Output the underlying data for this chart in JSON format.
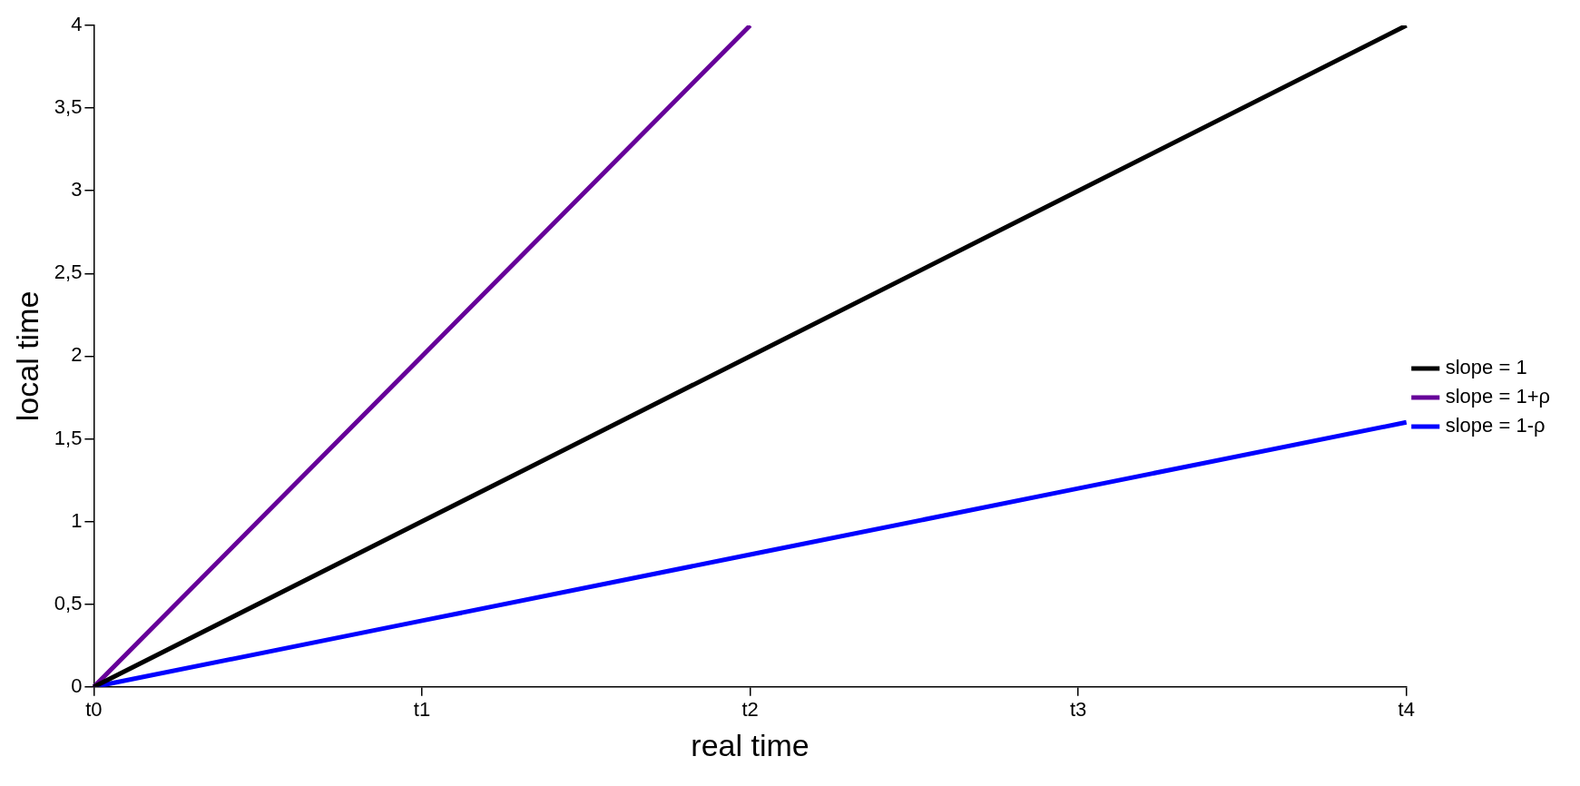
{
  "chart_data": {
    "type": "line",
    "xlabel": "real time",
    "ylabel": "local time",
    "categories": [
      "t0",
      "t1",
      "t2",
      "t3",
      "t4"
    ],
    "series": [
      {
        "name": "slope = 1",
        "color": "#000000",
        "values": [
          0,
          1,
          2,
          3,
          4
        ]
      },
      {
        "name": "slope = 1+ρ",
        "color": "#660099",
        "values": [
          0,
          2,
          4,
          null,
          null
        ]
      },
      {
        "name": "slope = 1-ρ",
        "color": "#0000ff",
        "values": [
          0,
          0.4,
          0.8,
          1.2,
          1.6
        ]
      }
    ],
    "ylim": [
      0,
      4
    ],
    "yticks": [
      0,
      {
        "value": 0.5,
        "label": "0,5"
      },
      1,
      {
        "value": 1.5,
        "label": "1,5"
      },
      2,
      {
        "value": 2.5,
        "label": "2,5"
      },
      3,
      {
        "value": 3.5,
        "label": "3,5"
      },
      4
    ],
    "grid": false,
    "legend": "right",
    "marker": "none",
    "line_style": "solid"
  }
}
